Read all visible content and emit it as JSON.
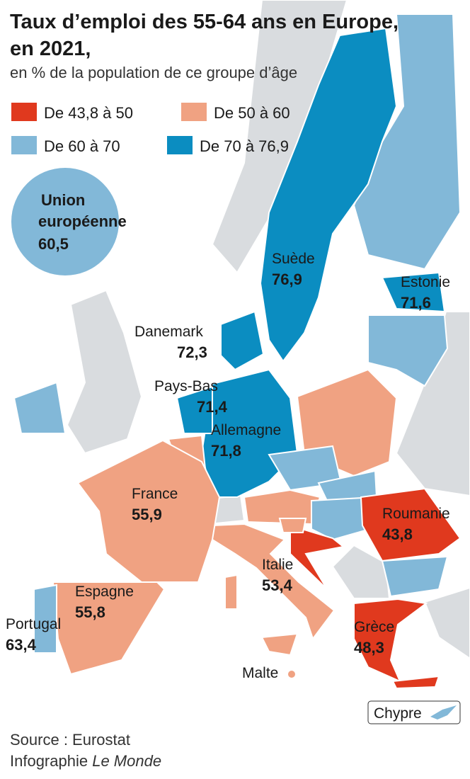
{
  "title": "Taux d’emploi des 55-64 ans en Europe, en 2021,",
  "subtitle": "en % de la population de ce groupe d’âge",
  "legend": [
    {
      "label": "De 43,8 à 50",
      "color": "#e0391e"
    },
    {
      "label": "De 50 à 60",
      "color": "#f0a282"
    },
    {
      "label": "De 60 à 70",
      "color": "#82b8d8"
    },
    {
      "label": "De 70 à 76,9",
      "color": "#0b8dc1"
    }
  ],
  "eu": {
    "name": "Union européenne",
    "value": "60,5"
  },
  "countries": [
    {
      "name": "Suède",
      "value": "76,9"
    },
    {
      "name": "Estonie",
      "value": "71,6"
    },
    {
      "name": "Danemark",
      "value": "72,3"
    },
    {
      "name": "Pays-Bas",
      "value": "71,4"
    },
    {
      "name": "Allemagne",
      "value": "71,8"
    },
    {
      "name": "France",
      "value": "55,9"
    },
    {
      "name": "Roumanie",
      "value": "43,8"
    },
    {
      "name": "Italie",
      "value": "53,4"
    },
    {
      "name": "Espagne",
      "value": "55,8"
    },
    {
      "name": "Portugal",
      "value": "63,4"
    },
    {
      "name": "Grèce",
      "value": "48,3"
    },
    {
      "name": "Malte"
    }
  ],
  "inset": "Chypre",
  "source": "Source : Eurostat",
  "credit": {
    "prefix": "Infographie",
    "name": "Le Monde"
  }
}
